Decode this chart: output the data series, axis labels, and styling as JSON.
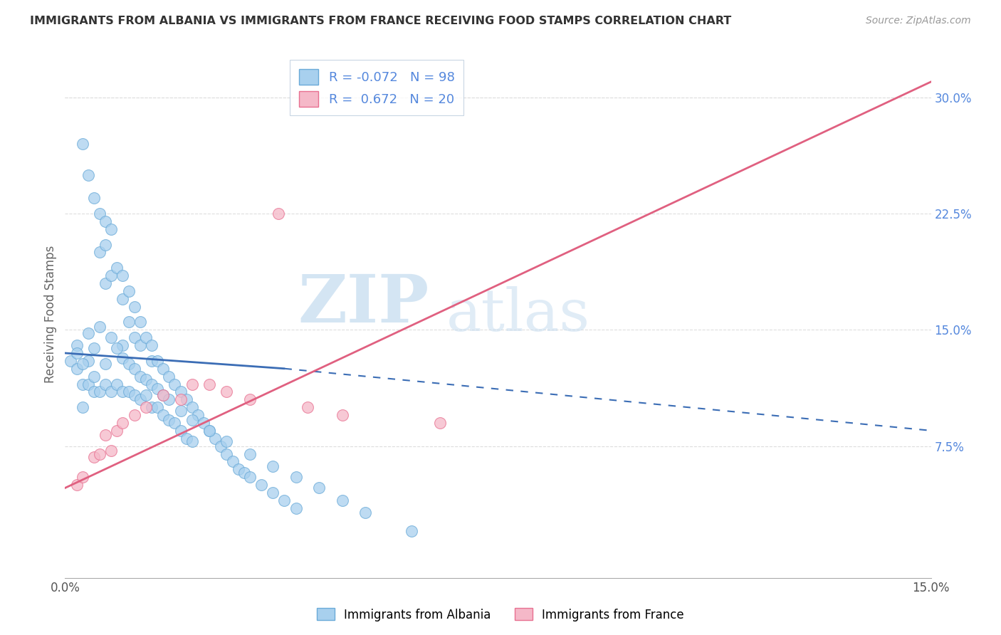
{
  "title": "IMMIGRANTS FROM ALBANIA VS IMMIGRANTS FROM FRANCE RECEIVING FOOD STAMPS CORRELATION CHART",
  "source": "Source: ZipAtlas.com",
  "ylabel": "Receiving Food Stamps",
  "xlim": [
    0.0,
    0.15
  ],
  "ylim": [
    -0.01,
    0.33
  ],
  "yticks_right": [
    0.075,
    0.15,
    0.225,
    0.3
  ],
  "ytick_right_labels": [
    "7.5%",
    "15.0%",
    "22.5%",
    "30.0%"
  ],
  "legend_label_albania": "Immigrants from Albania",
  "legend_label_france": "Immigrants from France",
  "r_albania": "-0.072",
  "n_albania": "98",
  "r_france": "0.672",
  "n_france": "20",
  "color_albania_fill": "#A8D0EE",
  "color_albania_edge": "#6AAAD8",
  "color_france_fill": "#F5B8C8",
  "color_france_edge": "#E87090",
  "color_line_albania": "#3B6DB5",
  "color_line_france": "#E06080",
  "watermark_zip": "ZIP",
  "watermark_atlas": "atlas",
  "background_color": "#FFFFFF",
  "grid_color": "#DDDDDD",
  "albania_x": [
    0.001,
    0.002,
    0.002,
    0.003,
    0.003,
    0.003,
    0.004,
    0.004,
    0.004,
    0.005,
    0.005,
    0.005,
    0.006,
    0.006,
    0.006,
    0.007,
    0.007,
    0.007,
    0.007,
    0.008,
    0.008,
    0.008,
    0.009,
    0.009,
    0.01,
    0.01,
    0.01,
    0.01,
    0.011,
    0.011,
    0.011,
    0.012,
    0.012,
    0.012,
    0.013,
    0.013,
    0.013,
    0.014,
    0.014,
    0.015,
    0.015,
    0.015,
    0.016,
    0.016,
    0.017,
    0.017,
    0.018,
    0.018,
    0.019,
    0.019,
    0.02,
    0.02,
    0.021,
    0.021,
    0.022,
    0.022,
    0.023,
    0.024,
    0.025,
    0.026,
    0.027,
    0.028,
    0.029,
    0.03,
    0.031,
    0.032,
    0.034,
    0.036,
    0.038,
    0.04,
    0.002,
    0.003,
    0.004,
    0.005,
    0.006,
    0.007,
    0.008,
    0.009,
    0.01,
    0.011,
    0.012,
    0.013,
    0.014,
    0.015,
    0.016,
    0.017,
    0.018,
    0.02,
    0.022,
    0.025,
    0.028,
    0.032,
    0.036,
    0.04,
    0.044,
    0.048,
    0.052,
    0.06
  ],
  "albania_y": [
    0.13,
    0.125,
    0.14,
    0.27,
    0.115,
    0.1,
    0.25,
    0.13,
    0.115,
    0.235,
    0.12,
    0.11,
    0.225,
    0.2,
    0.11,
    0.22,
    0.205,
    0.18,
    0.115,
    0.215,
    0.185,
    0.11,
    0.19,
    0.115,
    0.185,
    0.17,
    0.14,
    0.11,
    0.175,
    0.155,
    0.11,
    0.165,
    0.145,
    0.108,
    0.155,
    0.14,
    0.105,
    0.145,
    0.108,
    0.14,
    0.13,
    0.1,
    0.13,
    0.1,
    0.125,
    0.095,
    0.12,
    0.092,
    0.115,
    0.09,
    0.11,
    0.085,
    0.105,
    0.08,
    0.1,
    0.078,
    0.095,
    0.09,
    0.085,
    0.08,
    0.075,
    0.07,
    0.065,
    0.06,
    0.058,
    0.055,
    0.05,
    0.045,
    0.04,
    0.035,
    0.135,
    0.128,
    0.148,
    0.138,
    0.152,
    0.128,
    0.145,
    0.138,
    0.132,
    0.128,
    0.125,
    0.12,
    0.118,
    0.115,
    0.112,
    0.108,
    0.105,
    0.098,
    0.092,
    0.085,
    0.078,
    0.07,
    0.062,
    0.055,
    0.048,
    0.04,
    0.032,
    0.02
  ],
  "france_x": [
    0.002,
    0.003,
    0.005,
    0.006,
    0.007,
    0.008,
    0.009,
    0.01,
    0.012,
    0.014,
    0.017,
    0.02,
    0.022,
    0.025,
    0.028,
    0.032,
    0.037,
    0.042,
    0.048,
    0.065
  ],
  "france_y": [
    0.05,
    0.055,
    0.068,
    0.07,
    0.082,
    0.072,
    0.085,
    0.09,
    0.095,
    0.1,
    0.108,
    0.105,
    0.115,
    0.115,
    0.11,
    0.105,
    0.225,
    0.1,
    0.095,
    0.09
  ],
  "albania_line_x0": 0.0,
  "albania_line_x_solid_end": 0.038,
  "albania_line_x1": 0.15,
  "albania_line_y0": 0.135,
  "albania_line_y_solid_end": 0.125,
  "albania_line_y1": 0.085,
  "france_line_x0": 0.0,
  "france_line_x1": 0.15,
  "france_line_y0": 0.048,
  "france_line_y1": 0.31
}
